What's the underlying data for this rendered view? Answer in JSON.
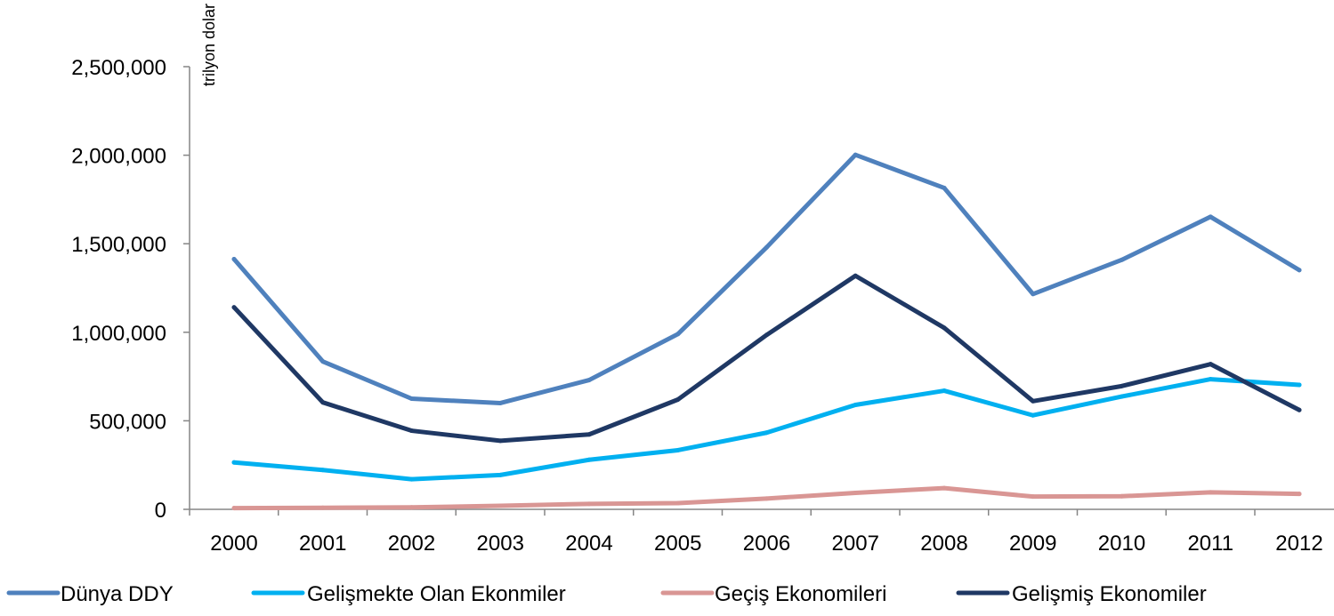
{
  "chart_data": {
    "type": "line",
    "title": "",
    "xlabel": "",
    "ylabel": "trilyon dolar",
    "categories": [
      "2000",
      "2001",
      "2002",
      "2003",
      "2004",
      "2005",
      "2006",
      "2007",
      "2008",
      "2009",
      "2010",
      "2011",
      "2012"
    ],
    "ylim": [
      0,
      2500000
    ],
    "yticks": [
      0,
      500000,
      1000000,
      1500000,
      2000000,
      2500000
    ],
    "ytick_labels": [
      "0",
      "500,000",
      "1,000,000",
      "1,500,000",
      "2,000,000",
      "2,500,000"
    ],
    "grid": false,
    "legend_position": "bottom",
    "series": [
      {
        "name": "Dünya DDY",
        "color": "#4F81BD",
        "values": [
          1413000,
          835000,
          625000,
          600000,
          730000,
          990000,
          1480000,
          2002000,
          1815000,
          1216000,
          1409000,
          1652000,
          1351000
        ]
      },
      {
        "name": "Gelişmekte Olan Ekonmiler",
        "color": "#00B0F0",
        "values": [
          265000,
          222000,
          170000,
          194000,
          280000,
          334000,
          433000,
          590000,
          670000,
          531000,
          637000,
          735000,
          703000
        ]
      },
      {
        "name": "Geçiş Ekonomileri",
        "color": "#D99694",
        "values": [
          7000,
          9000,
          11000,
          20000,
          31000,
          35000,
          61000,
          93000,
          120000,
          72000,
          74000,
          96000,
          87000
        ]
      },
      {
        "name": "Gelişmiş Ekonomiler",
        "color": "#1F3864",
        "values": [
          1141000,
          604000,
          444000,
          387000,
          423000,
          620000,
          985000,
          1319000,
          1025000,
          611000,
          696000,
          820000,
          561000
        ]
      }
    ]
  }
}
